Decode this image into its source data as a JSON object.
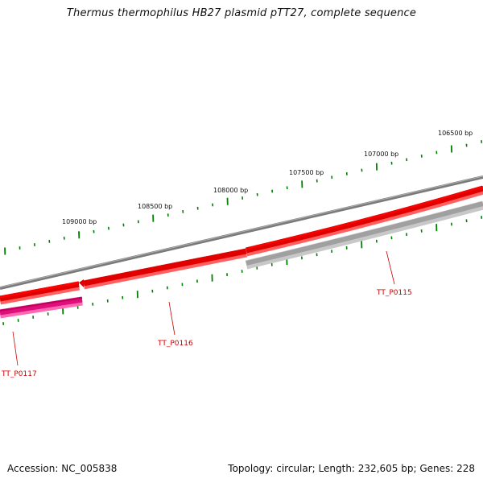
{
  "title": "Thermus thermophilus HB27 plasmid pTT27, complete sequence",
  "footer": {
    "accession": "Accession: NC_005838",
    "summary": "Topology: circular; Length: 232,605 bp; Genes: 228"
  },
  "ruler_labels": [
    "106500 bp",
    "107000 bp",
    "107500 bp",
    "108000 bp",
    "108500 bp",
    "109000 bp"
  ],
  "genes": [
    {
      "id": "TT_P0115",
      "color": "#a0a0a0"
    },
    {
      "id": "TT_P0116",
      "color": "#ff0000"
    },
    {
      "id": "TT_P0117",
      "color": "#ff1493"
    }
  ],
  "colors": {
    "backbone": "#808080",
    "forward_gene": "#ff0000",
    "reverse_gene": "#a0a0a0",
    "rna_gene": "#ff1493",
    "tick": "#008000",
    "label_line": "#cc0000"
  }
}
